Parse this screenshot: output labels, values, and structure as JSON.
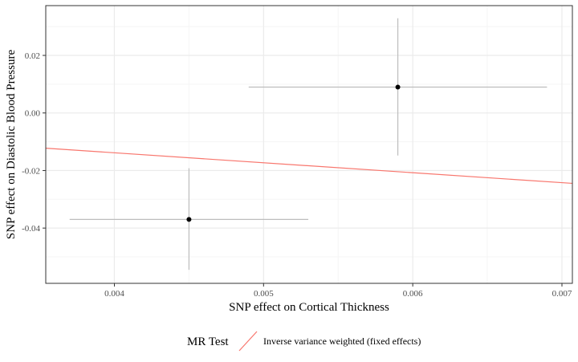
{
  "chart_data": {
    "type": "scatter",
    "xlabel": "SNP effect on Cortical Thickness",
    "ylabel": "SNP effect on Diastolic Blood Pressure",
    "xlim": [
      0.00354,
      0.00707
    ],
    "ylim": [
      -0.0592,
      0.0373
    ],
    "x_ticks": [
      0.004,
      0.005,
      0.006,
      0.007
    ],
    "x_tick_labels": [
      "0.004",
      "0.005",
      "0.006",
      "0.007"
    ],
    "y_ticks": [
      0.02,
      0.0,
      -0.02,
      -0.04
    ],
    "y_tick_labels": [
      "0.02",
      "0.00",
      "-0.02",
      "-0.04"
    ],
    "grid": true,
    "points": [
      {
        "x": 0.0045,
        "y": -0.037,
        "x_err_low": 0.0037,
        "x_err_high": 0.0053,
        "y_err_low": -0.0545,
        "y_err_high": -0.0192
      },
      {
        "x": 0.0059,
        "y": 0.009,
        "x_err_low": 0.0049,
        "x_err_high": 0.0069,
        "y_err_low": -0.0148,
        "y_err_high": 0.0329
      }
    ],
    "lines": [
      {
        "name": "Inverse variance weighted (fixed effects)",
        "slope": -3.46,
        "intercept": 0.0,
        "color": "#F8766D"
      }
    ],
    "legend": {
      "title": "MR Test",
      "position": "bottom",
      "entries": [
        "Inverse variance weighted (fixed effects)"
      ]
    },
    "colors": {
      "point": "#000000",
      "errorbar": "#bdbdbd",
      "grid_major": "#ebebeb",
      "grid_minor": "#f5f5f5",
      "panel_border": "#333333"
    }
  }
}
